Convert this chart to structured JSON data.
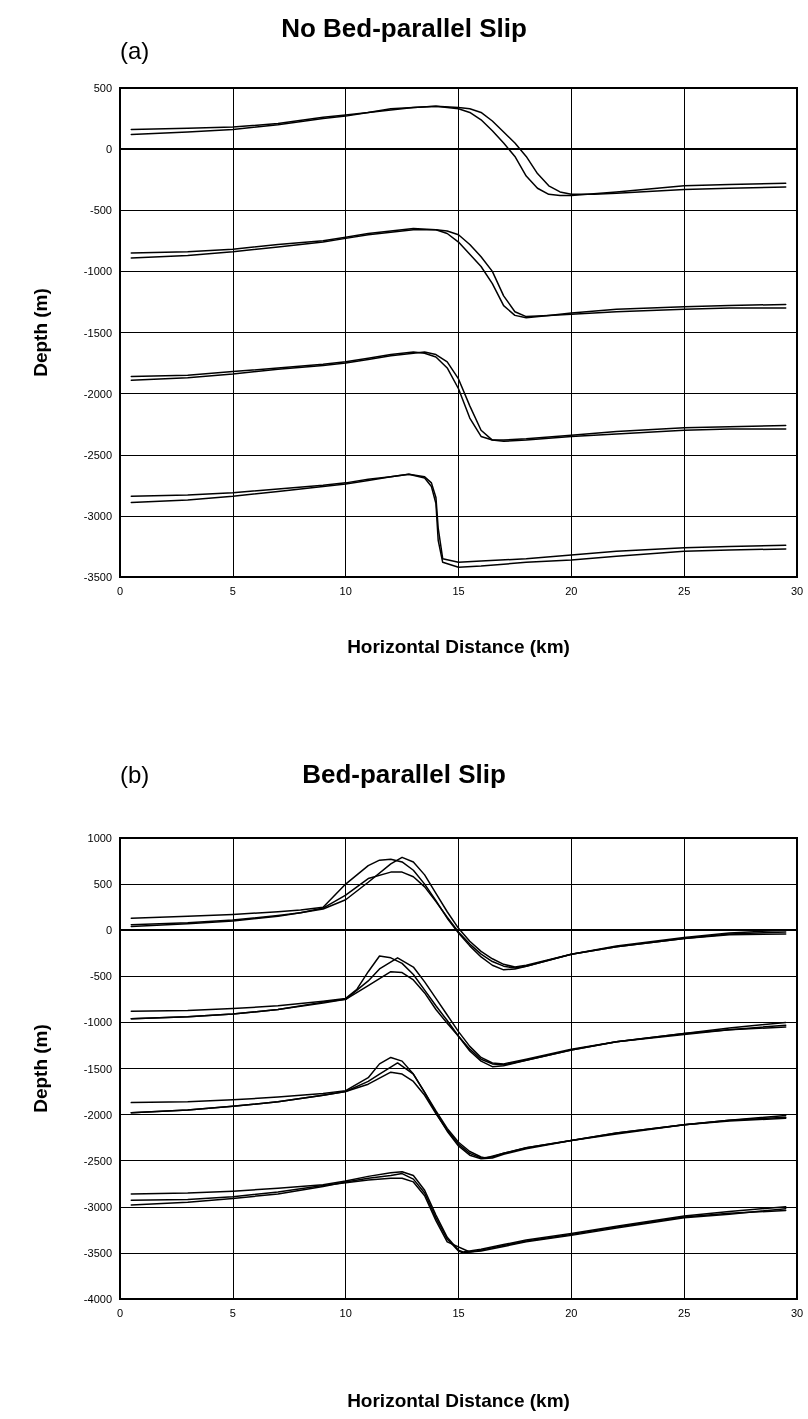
{
  "chart_data": [
    {
      "type": "line",
      "title": "No Bed-parallel Slip",
      "annotations": [
        "(a)"
      ],
      "xlabel": "Horizontal Distance (km)",
      "ylabel": "Depth (m)",
      "xlim": [
        0,
        30
      ],
      "xticks": [
        0,
        5,
        10,
        15,
        20,
        25,
        30
      ],
      "ylim": [
        -3500,
        500
      ],
      "yticks": [
        -3500,
        -3000,
        -2500,
        -2000,
        -1500,
        -1000,
        -500,
        0,
        500
      ],
      "grid": true,
      "marker": "none",
      "line_style": "solid",
      "series": [
        {
          "color": "#000000",
          "x": [
            0.5,
            3,
            5,
            7,
            9,
            10,
            11,
            12,
            13,
            14,
            15,
            15.5,
            16,
            16.5,
            17,
            17.5,
            18,
            18.5,
            19,
            19.5,
            20,
            21,
            22,
            25,
            27,
            29.5
          ],
          "values": [
            120,
            140,
            160,
            200,
            250,
            270,
            300,
            320,
            340,
            350,
            340,
            330,
            300,
            230,
            140,
            50,
            -60,
            -200,
            -300,
            -350,
            -370,
            -370,
            -360,
            -330,
            -320,
            -310
          ]
        },
        {
          "color": "#000000",
          "x": [
            0.5,
            3,
            5,
            7,
            9,
            10,
            11,
            12,
            13,
            14,
            14.5,
            15,
            15.5,
            16,
            16.5,
            17,
            17.5,
            18,
            18.5,
            19,
            19.5,
            20,
            22,
            25,
            27,
            29.5
          ],
          "values": [
            160,
            170,
            180,
            210,
            260,
            280,
            300,
            330,
            340,
            350,
            340,
            330,
            300,
            240,
            150,
            50,
            -60,
            -220,
            -320,
            -370,
            -380,
            -380,
            -350,
            -300,
            -290,
            -280
          ]
        },
        {
          "color": "#000000",
          "x": [
            0.5,
            3,
            5,
            7,
            9,
            10,
            11,
            12,
            13,
            14,
            14.5,
            15,
            15.5,
            16,
            16.5,
            17,
            17.5,
            18,
            19,
            20,
            22,
            25,
            27,
            29.5
          ],
          "values": [
            -890,
            -870,
            -840,
            -800,
            -760,
            -730,
            -700,
            -680,
            -660,
            -660,
            -670,
            -700,
            -780,
            -880,
            -1000,
            -1200,
            -1330,
            -1370,
            -1360,
            -1350,
            -1330,
            -1310,
            -1300,
            -1300
          ]
        },
        {
          "color": "#000000",
          "x": [
            0.5,
            3,
            5,
            7,
            9,
            10,
            11,
            12,
            13,
            14,
            14.5,
            15,
            15.5,
            16,
            16.5,
            17,
            17.5,
            18,
            19,
            20,
            22,
            25,
            27,
            29.5
          ],
          "values": [
            -850,
            -840,
            -820,
            -780,
            -750,
            -720,
            -690,
            -670,
            -650,
            -660,
            -690,
            -760,
            -860,
            -960,
            -1100,
            -1280,
            -1360,
            -1380,
            -1360,
            -1340,
            -1310,
            -1290,
            -1280,
            -1270
          ]
        },
        {
          "color": "#000000",
          "x": [
            0.5,
            3,
            5,
            7,
            9,
            10,
            11,
            12,
            13,
            13.5,
            14,
            14.5,
            15,
            15.5,
            16,
            16.5,
            17,
            18,
            20,
            22,
            25,
            27,
            29.5
          ],
          "values": [
            -1890,
            -1870,
            -1840,
            -1800,
            -1770,
            -1750,
            -1720,
            -1690,
            -1670,
            -1660,
            -1680,
            -1740,
            -1880,
            -2100,
            -2300,
            -2380,
            -2390,
            -2380,
            -2350,
            -2330,
            -2300,
            -2290,
            -2290
          ]
        },
        {
          "color": "#000000",
          "x": [
            0.5,
            3,
            5,
            7,
            9,
            10,
            11,
            12,
            13,
            13.5,
            14,
            14.5,
            15,
            15.5,
            16,
            16.5,
            17,
            18,
            20,
            22,
            25,
            27,
            29.5
          ],
          "values": [
            -1860,
            -1850,
            -1820,
            -1790,
            -1760,
            -1740,
            -1710,
            -1680,
            -1660,
            -1670,
            -1700,
            -1790,
            -1960,
            -2200,
            -2350,
            -2380,
            -2380,
            -2370,
            -2340,
            -2310,
            -2280,
            -2270,
            -2260
          ]
        },
        {
          "color": "#000000",
          "x": [
            0.5,
            3,
            5,
            7,
            9,
            10,
            11,
            12,
            12.8,
            13.5,
            13.8,
            14,
            14.1,
            14.3,
            15,
            16,
            18,
            20,
            22,
            25,
            27,
            29.5
          ],
          "values": [
            -2890,
            -2870,
            -2840,
            -2800,
            -2760,
            -2740,
            -2710,
            -2680,
            -2660,
            -2690,
            -2760,
            -2900,
            -3200,
            -3380,
            -3420,
            -3410,
            -3380,
            -3360,
            -3330,
            -3290,
            -3280,
            -3270
          ]
        },
        {
          "color": "#000000",
          "x": [
            0.5,
            3,
            5,
            7,
            9,
            10,
            11,
            12,
            12.8,
            13.5,
            13.8,
            14,
            14.1,
            14.3,
            15,
            16,
            18,
            20,
            22,
            25,
            27,
            29.5
          ],
          "values": [
            -2840,
            -2830,
            -2810,
            -2780,
            -2750,
            -2730,
            -2700,
            -2680,
            -2660,
            -2680,
            -2730,
            -2850,
            -3100,
            -3350,
            -3380,
            -3370,
            -3350,
            -3320,
            -3290,
            -3260,
            -3250,
            -3240
          ]
        }
      ]
    },
    {
      "type": "line",
      "title": "Bed-parallel Slip",
      "annotations": [
        "(b)"
      ],
      "xlabel": "Horizontal Distance (km)",
      "ylabel": "Depth (m)",
      "xlim": [
        0,
        30
      ],
      "xticks": [
        0,
        5,
        10,
        15,
        20,
        25,
        30
      ],
      "ylim": [
        -4000,
        1000
      ],
      "yticks": [
        -4000,
        -3500,
        -3000,
        -2500,
        -2000,
        -1500,
        -1000,
        -500,
        0,
        500,
        1000
      ],
      "grid": true,
      "marker": "none",
      "line_style": "solid",
      "series": [
        {
          "color": "#000000",
          "x": [
            0.5,
            3,
            5,
            7,
            8,
            9,
            10,
            11,
            12,
            12.5,
            13,
            13.5,
            14,
            14.5,
            15,
            15.5,
            16,
            16.5,
            17,
            17.5,
            18,
            20,
            22,
            25,
            27,
            29.5
          ],
          "values": [
            40,
            70,
            100,
            150,
            190,
            230,
            330,
            520,
            720,
            790,
            740,
            600,
            400,
            200,
            20,
            -120,
            -230,
            -310,
            -370,
            -400,
            -380,
            -260,
            -180,
            -90,
            -50,
            -40
          ]
        },
        {
          "color": "#000000",
          "x": [
            0.5,
            3,
            5,
            7,
            8,
            9,
            10,
            11,
            11.5,
            12,
            12.5,
            13,
            13.5,
            14,
            14.5,
            15,
            15.5,
            16,
            16.5,
            17,
            17.5,
            18,
            20,
            22,
            25,
            27,
            29.5
          ],
          "values": [
            130,
            150,
            170,
            200,
            220,
            250,
            500,
            700,
            760,
            770,
            740,
            650,
            500,
            320,
            130,
            -30,
            -170,
            -290,
            -380,
            -430,
            -420,
            -390,
            -260,
            -170,
            -80,
            -30,
            0
          ]
        },
        {
          "color": "#000000",
          "x": [
            0.5,
            3,
            5,
            7,
            8,
            9,
            10,
            11,
            12,
            12.5,
            13,
            13.5,
            14,
            14.5,
            15,
            15.5,
            16,
            16.5,
            17,
            17.5,
            18,
            20,
            22,
            25,
            27,
            29.5
          ],
          "values": [
            60,
            80,
            110,
            160,
            190,
            240,
            380,
            560,
            630,
            630,
            580,
            470,
            310,
            140,
            -20,
            -150,
            -260,
            -340,
            -390,
            -410,
            -390,
            -260,
            -180,
            -90,
            -40,
            -20
          ]
        },
        {
          "color": "#000000",
          "x": [
            0.5,
            3,
            5,
            7,
            9,
            10,
            11,
            11.5,
            12.3,
            13,
            13.5,
            14,
            14.5,
            15,
            15.5,
            16,
            16.5,
            17,
            18,
            20,
            22,
            25,
            27,
            29.5
          ],
          "values": [
            -960,
            -940,
            -910,
            -860,
            -790,
            -750,
            -550,
            -420,
            -300,
            -400,
            -560,
            -740,
            -920,
            -1100,
            -1260,
            -1380,
            -1440,
            -1450,
            -1400,
            -1290,
            -1210,
            -1120,
            -1080,
            -1050
          ]
        },
        {
          "color": "#000000",
          "x": [
            0.5,
            3,
            5,
            7,
            9,
            10,
            10.5,
            11,
            11.5,
            12,
            12.5,
            13,
            13.5,
            14,
            14.5,
            15,
            15.5,
            16,
            16.5,
            17,
            18,
            20,
            22,
            25,
            27,
            29.5
          ],
          "values": [
            -880,
            -870,
            -850,
            -820,
            -770,
            -740,
            -640,
            -450,
            -280,
            -300,
            -360,
            -480,
            -650,
            -820,
            -980,
            -1150,
            -1310,
            -1420,
            -1480,
            -1470,
            -1410,
            -1300,
            -1210,
            -1120,
            -1060,
            -1000
          ]
        },
        {
          "color": "#000000",
          "x": [
            0.5,
            3,
            5,
            7,
            9,
            10,
            11,
            12,
            12.5,
            13,
            13.5,
            14,
            14.5,
            15,
            15.5,
            16,
            16.5,
            17,
            18,
            20,
            22,
            25,
            27,
            29.5
          ],
          "values": [
            -960,
            -940,
            -910,
            -860,
            -780,
            -750,
            -600,
            -450,
            -460,
            -540,
            -680,
            -860,
            -1010,
            -1150,
            -1290,
            -1400,
            -1450,
            -1460,
            -1410,
            -1300,
            -1210,
            -1130,
            -1080,
            -1030
          ]
        },
        {
          "color": "#000000",
          "x": [
            0.5,
            3,
            5,
            7,
            9,
            10,
            11,
            11.5,
            12.3,
            13,
            13.5,
            14,
            14.5,
            15,
            15.5,
            16,
            16.2,
            17,
            18,
            20,
            22,
            25,
            27,
            29.5
          ],
          "values": [
            -1980,
            -1950,
            -1910,
            -1860,
            -1790,
            -1750,
            -1640,
            -1560,
            -1440,
            -1560,
            -1760,
            -1960,
            -2150,
            -2300,
            -2400,
            -2460,
            -2470,
            -2420,
            -2360,
            -2280,
            -2200,
            -2110,
            -2070,
            -2040
          ]
        },
        {
          "color": "#000000",
          "x": [
            0.5,
            3,
            5,
            7,
            9,
            10,
            11,
            11.5,
            12,
            12.5,
            13,
            13.5,
            14,
            14.5,
            15,
            15.5,
            16,
            16.5,
            17,
            18,
            20,
            22,
            25,
            27,
            29.5
          ],
          "values": [
            -1870,
            -1860,
            -1840,
            -1810,
            -1770,
            -1740,
            -1600,
            -1450,
            -1380,
            -1420,
            -1560,
            -1760,
            -1980,
            -2180,
            -2340,
            -2440,
            -2480,
            -2470,
            -2430,
            -2370,
            -2280,
            -2210,
            -2110,
            -2060,
            -2010
          ]
        },
        {
          "color": "#000000",
          "x": [
            0.5,
            3,
            5,
            7,
            9,
            10,
            11,
            12,
            12.5,
            13,
            13.5,
            14,
            14.5,
            15,
            15.5,
            16,
            16.5,
            17,
            18,
            20,
            22,
            25,
            27,
            29.5
          ],
          "values": [
            -1980,
            -1950,
            -1910,
            -1860,
            -1790,
            -1750,
            -1670,
            -1540,
            -1560,
            -1640,
            -1790,
            -1990,
            -2170,
            -2320,
            -2420,
            -2470,
            -2460,
            -2420,
            -2360,
            -2280,
            -2200,
            -2110,
            -2060,
            -2030
          ]
        },
        {
          "color": "#000000",
          "x": [
            0.5,
            3,
            5,
            7,
            9,
            10,
            11,
            12,
            12.5,
            13,
            13.5,
            14,
            14.5,
            15,
            15.2,
            16,
            17,
            18,
            20,
            22,
            25,
            27,
            29.5
          ],
          "values": [
            -2980,
            -2950,
            -2910,
            -2860,
            -2780,
            -2730,
            -2690,
            -2660,
            -2640,
            -2700,
            -2850,
            -3120,
            -3350,
            -3480,
            -3500,
            -3470,
            -3420,
            -3370,
            -3300,
            -3220,
            -3110,
            -3070,
            -3040
          ]
        },
        {
          "color": "#000000",
          "x": [
            0.5,
            3,
            5,
            7,
            9,
            10,
            11,
            12,
            12.5,
            13,
            13.5,
            14,
            14.5,
            15,
            15.2,
            16,
            17,
            18,
            20,
            22,
            25,
            27,
            29.5
          ],
          "values": [
            -2860,
            -2850,
            -2830,
            -2800,
            -2760,
            -2720,
            -2670,
            -2630,
            -2620,
            -2660,
            -2820,
            -3090,
            -3330,
            -3470,
            -3490,
            -3460,
            -3410,
            -3360,
            -3290,
            -3210,
            -3100,
            -3050,
            -3000
          ]
        },
        {
          "color": "#000000",
          "x": [
            0.5,
            3,
            5,
            7,
            9,
            10,
            11,
            12,
            12.5,
            13,
            13.5,
            14,
            14.5,
            15.5,
            16,
            17,
            18,
            20,
            22,
            25,
            27,
            29.5
          ],
          "values": [
            -2930,
            -2920,
            -2890,
            -2840,
            -2770,
            -2740,
            -2710,
            -2690,
            -2690,
            -2730,
            -2880,
            -3150,
            -3380,
            -3490,
            -3480,
            -3430,
            -3380,
            -3310,
            -3230,
            -3120,
            -3080,
            -3020
          ]
        }
      ]
    }
  ]
}
